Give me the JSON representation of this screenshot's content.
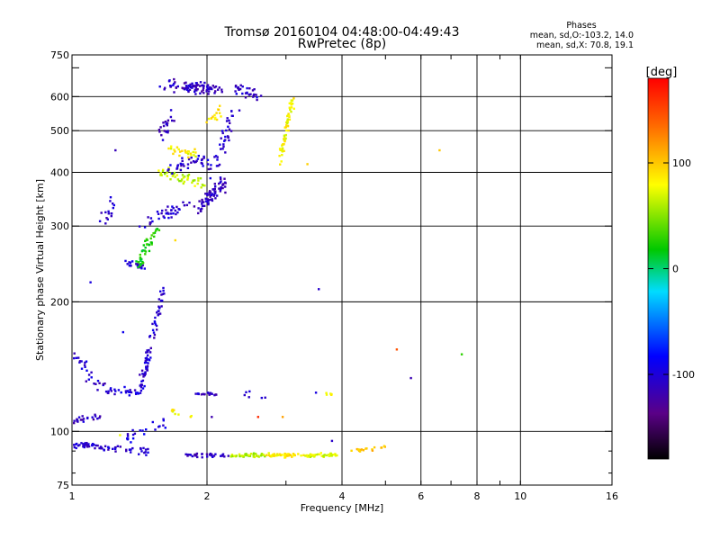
{
  "chart_data": {
    "type": "scatter",
    "title": "Tromsø 20160104 04:48:00-04:49:43",
    "subtitle": "RwPretec (8p)",
    "xlabel": "Frequency [MHz]",
    "ylabel": "Stationary phase Virtual Height [km]",
    "x_scale": "log",
    "y_scale": "log",
    "xlim": [
      1,
      16
    ],
    "ylim": [
      75,
      750
    ],
    "x_ticks": [
      1,
      2,
      4,
      6,
      8,
      10,
      16
    ],
    "x_tick_labels": [
      "1",
      "2",
      "4",
      "6",
      "8",
      "10",
      "16"
    ],
    "x_grid": [
      2,
      4,
      6,
      8,
      10
    ],
    "y_ticks": [
      75,
      100,
      200,
      300,
      400,
      500,
      600,
      750
    ],
    "y_tick_labels": [
      "75",
      "100",
      "200",
      "300",
      "400",
      "500",
      "600",
      "750"
    ],
    "y_grid": [
      100,
      200,
      300,
      400,
      500,
      600
    ],
    "grid": true,
    "stats": {
      "title": "Phases",
      "line_o": "mean, sd,O:-103.2, 14.0",
      "line_x": "mean, sd,X:  70.8, 19.1"
    },
    "colorbar": {
      "label": "[deg]",
      "range": [
        -180,
        180
      ],
      "ticks": [
        100,
        0,
        -100
      ],
      "tick_labels": [
        "100",
        "0",
        "-100"
      ],
      "colormap": "rainbow"
    },
    "clusters": [
      {
        "x": [
          1.0,
          1.12
        ],
        "y": [
          92,
          93
        ],
        "phase": -105,
        "n": 30,
        "sx": 0.02,
        "sy": 0.02
      },
      {
        "x": [
          1.0,
          1.15
        ],
        "y": [
          106,
          108
        ],
        "phase": -110,
        "n": 25,
        "sx": 0.02,
        "sy": 0.015
      },
      {
        "x": [
          1.02,
          1.2
        ],
        "y": [
          150,
          122
        ],
        "phase": -105,
        "n": 30,
        "sx": 0.03,
        "sy": 0.03
      },
      {
        "x": [
          1.2,
          1.42
        ],
        "y": [
          125,
          123
        ],
        "phase": -100,
        "n": 25,
        "sx": 0.02,
        "sy": 0.02
      },
      {
        "x": [
          1.12,
          1.5
        ],
        "y": [
          92,
          90
        ],
        "phase": -105,
        "n": 40,
        "sx": 0.02,
        "sy": 0.02
      },
      {
        "x": [
          1.42,
          1.6
        ],
        "y": [
          125,
          215
        ],
        "phase": -105,
        "n": 75,
        "sx": 0.015,
        "sy": 0.02
      },
      {
        "x": [
          1.3,
          1.6
        ],
        "y": [
          95,
          105
        ],
        "phase": -100,
        "n": 22,
        "sx": 0.03,
        "sy": 0.03
      },
      {
        "x": [
          1.15,
          1.25
        ],
        "y": [
          310,
          330
        ],
        "phase": -105,
        "n": 15,
        "sx": 0.02,
        "sy": 0.04
      },
      {
        "x": [
          1.3,
          1.45
        ],
        "y": [
          245,
          240
        ],
        "phase": -105,
        "n": 20,
        "sx": 0.02,
        "sy": 0.02
      },
      {
        "x": [
          1.4,
          1.55
        ],
        "y": [
          240,
          300
        ],
        "phase": 20,
        "n": 45,
        "sx": 0.02,
        "sy": 0.03
      },
      {
        "x": [
          1.45,
          1.8
        ],
        "y": [
          300,
          340
        ],
        "phase": -105,
        "n": 40,
        "sx": 0.025,
        "sy": 0.03
      },
      {
        "x": [
          1.58,
          1.68
        ],
        "y": [
          480,
          560
        ],
        "phase": -110,
        "n": 20,
        "sx": 0.02,
        "sy": 0.05
      },
      {
        "x": [
          1.58,
          1.95
        ],
        "y": [
          400,
          380
        ],
        "phase": 65,
        "n": 45,
        "sx": 0.03,
        "sy": 0.03
      },
      {
        "x": [
          1.6,
          2.0
        ],
        "y": [
          410,
          430
        ],
        "phase": -105,
        "n": 35,
        "sx": 0.03,
        "sy": 0.04
      },
      {
        "x": [
          1.65,
          1.9
        ],
        "y": [
          455,
          440
        ],
        "phase": 80,
        "n": 25,
        "sx": 0.02,
        "sy": 0.03
      },
      {
        "x": [
          1.9,
          2.2
        ],
        "y": [
          330,
          380
        ],
        "phase": -110,
        "n": 70,
        "sx": 0.02,
        "sy": 0.04
      },
      {
        "x": [
          2.05,
          2.3
        ],
        "y": [
          400,
          550
        ],
        "phase": -105,
        "n": 40,
        "sx": 0.02,
        "sy": 0.05
      },
      {
        "x": [
          1.6,
          2.0
        ],
        "y": [
          640,
          615
        ],
        "phase": -110,
        "n": 45,
        "sx": 0.03,
        "sy": 0.025
      },
      {
        "x": [
          1.8,
          2.15
        ],
        "y": [
          645,
          625
        ],
        "phase": -110,
        "n": 45,
        "sx": 0.02,
        "sy": 0.02
      },
      {
        "x": [
          2.3,
          2.6
        ],
        "y": [
          630,
          600
        ],
        "phase": -105,
        "n": 30,
        "sx": 0.02,
        "sy": 0.03
      },
      {
        "x": [
          2.0,
          2.15
        ],
        "y": [
          520,
          560
        ],
        "phase": 90,
        "n": 15,
        "sx": 0.02,
        "sy": 0.05
      },
      {
        "x": [
          2.9,
          3.1
        ],
        "y": [
          420,
          590
        ],
        "phase": 80,
        "n": 55,
        "sx": 0.01,
        "sy": 0.03
      },
      {
        "x": [
          1.9,
          2.1
        ],
        "y": [
          122,
          122
        ],
        "phase": -110,
        "n": 20,
        "sx": 0.015,
        "sy": 0.01
      },
      {
        "x": [
          1.8,
          2.2
        ],
        "y": [
          88,
          88
        ],
        "phase": -110,
        "n": 35,
        "sx": 0.02,
        "sy": 0.01
      },
      {
        "x": [
          2.25,
          2.7
        ],
        "y": [
          88,
          88
        ],
        "phase": 60,
        "n": 45,
        "sx": 0.01,
        "sy": 0.01
      },
      {
        "x": [
          2.7,
          3.3
        ],
        "y": [
          88,
          88
        ],
        "phase": 85,
        "n": 45,
        "sx": 0.01,
        "sy": 0.01
      },
      {
        "x": [
          3.3,
          3.9
        ],
        "y": [
          88,
          88
        ],
        "phase": 70,
        "n": 40,
        "sx": 0.01,
        "sy": 0.01
      },
      {
        "x": [
          4.2,
          5.0
        ],
        "y": [
          90,
          92
        ],
        "phase": 100,
        "n": 20,
        "sx": 0.01,
        "sy": 0.01
      },
      {
        "x": [
          1.65,
          1.9
        ],
        "y": [
          112,
          108
        ],
        "phase": 80,
        "n": 8,
        "sx": 0.02,
        "sy": 0.02
      },
      {
        "x": [
          3.6,
          3.9
        ],
        "y": [
          122,
          122
        ],
        "phase": 90,
        "n": 5,
        "sx": 0.01,
        "sy": 0.01
      },
      {
        "x": [
          2.4,
          2.7
        ],
        "y": [
          122,
          120
        ],
        "phase": -105,
        "n": 6,
        "sx": 0.02,
        "sy": 0.02
      }
    ],
    "points": [
      {
        "x": 1.25,
        "y": 450,
        "phase": -105
      },
      {
        "x": 1.22,
        "y": 350,
        "phase": -105
      },
      {
        "x": 1.1,
        "y": 222,
        "phase": -105
      },
      {
        "x": 1.3,
        "y": 170,
        "phase": -105
      },
      {
        "x": 3.35,
        "y": 418,
        "phase": 100
      },
      {
        "x": 3.55,
        "y": 214,
        "phase": -110
      },
      {
        "x": 5.3,
        "y": 155,
        "phase": 140
      },
      {
        "x": 5.7,
        "y": 133,
        "phase": -110
      },
      {
        "x": 6.6,
        "y": 450,
        "phase": 100
      },
      {
        "x": 7.4,
        "y": 151,
        "phase": 30
      },
      {
        "x": 3.5,
        "y": 123,
        "phase": -110
      },
      {
        "x": 3.8,
        "y": 95,
        "phase": -100
      },
      {
        "x": 1.7,
        "y": 278,
        "phase": 90
      },
      {
        "x": 2.6,
        "y": 108,
        "phase": 150
      },
      {
        "x": 1.28,
        "y": 98,
        "phase": 80
      },
      {
        "x": 2.95,
        "y": 108,
        "phase": 130
      },
      {
        "x": 2.05,
        "y": 108,
        "phase": -110
      }
    ]
  }
}
